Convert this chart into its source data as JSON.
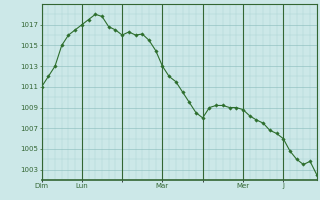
{
  "y_values": [
    1011,
    1012,
    1013,
    1015,
    1016,
    1016.5,
    1017,
    1017.5,
    1018,
    1017.8,
    1016.8,
    1016.5,
    1016,
    1016.3,
    1016,
    1016.1,
    1015.5,
    1014.5,
    1013,
    1012,
    1011.5,
    1010.5,
    1009.5,
    1008.5,
    1008,
    1009,
    1009.2,
    1009.2,
    1009,
    1009,
    1008.8,
    1008.2,
    1007.8,
    1007.5,
    1006.8,
    1006.5,
    1006,
    1004.8,
    1004,
    1003.5,
    1003.8,
    1002.5
  ],
  "ylim": [
    1002,
    1019
  ],
  "yticks": [
    1003,
    1005,
    1007,
    1009,
    1011,
    1013,
    1015,
    1017
  ],
  "background_color": "#cce8e8",
  "grid_minor_color": "#aad4d4",
  "grid_major_color": "#88bbbb",
  "line_color": "#2d6e2d",
  "marker_color": "#2d6e2d",
  "tick_label_color": "#336633",
  "border_color": "#336633",
  "day_labels": [
    "Dim",
    "Lun",
    "",
    "Mar",
    "",
    "Mer",
    "J"
  ],
  "n_points": 42,
  "points_per_day": 6
}
